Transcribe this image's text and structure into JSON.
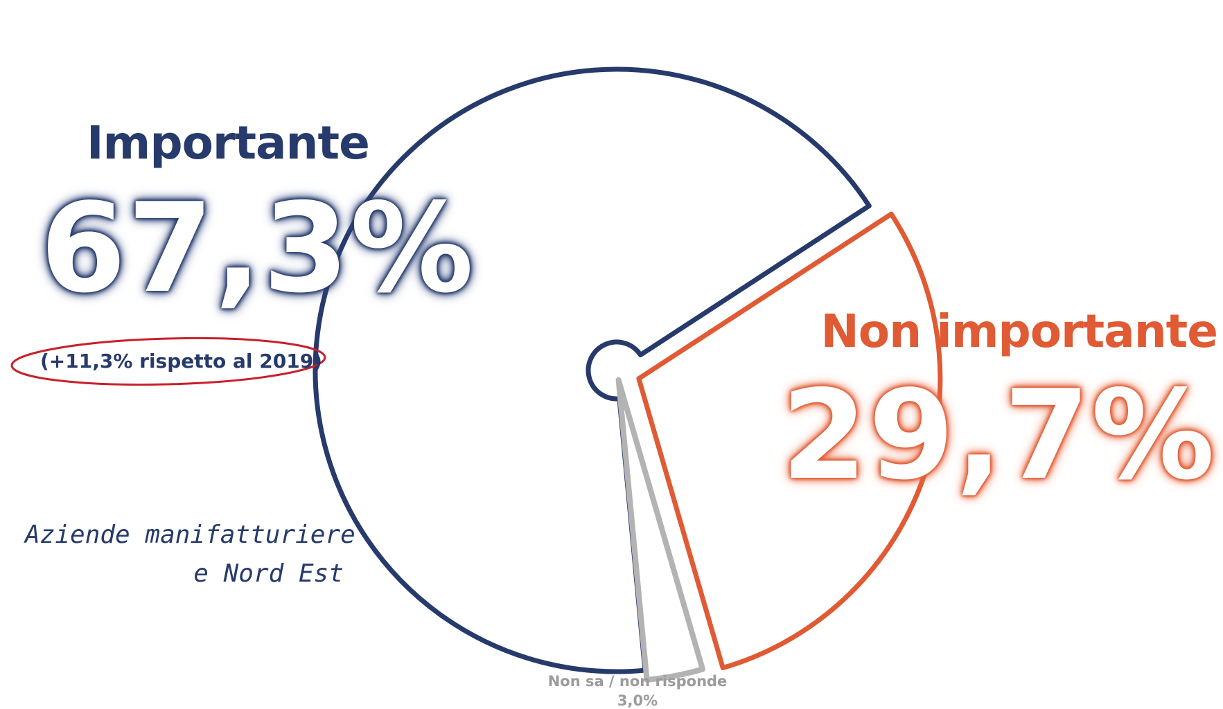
{
  "chart_data": {
    "type": "pie",
    "style": "exploded outline slices",
    "slices": [
      {
        "label": "Importante",
        "value": 67.3,
        "value_label": "67,3%",
        "color": "#263a6b"
      },
      {
        "label": "Non importante",
        "value": 29.7,
        "value_label": "29,7%",
        "color": "#e05a33"
      },
      {
        "label": "Non sa / non risponde",
        "value": 3.0,
        "value_label": "3,0%",
        "color": "#b3b3b3"
      }
    ],
    "annotation": "(+11,3% rispetto al 2019)",
    "annotation_circle_color": "#c8202a",
    "note_lines": [
      "Aziende manifatturiere",
      "e Nord Est"
    ]
  }
}
